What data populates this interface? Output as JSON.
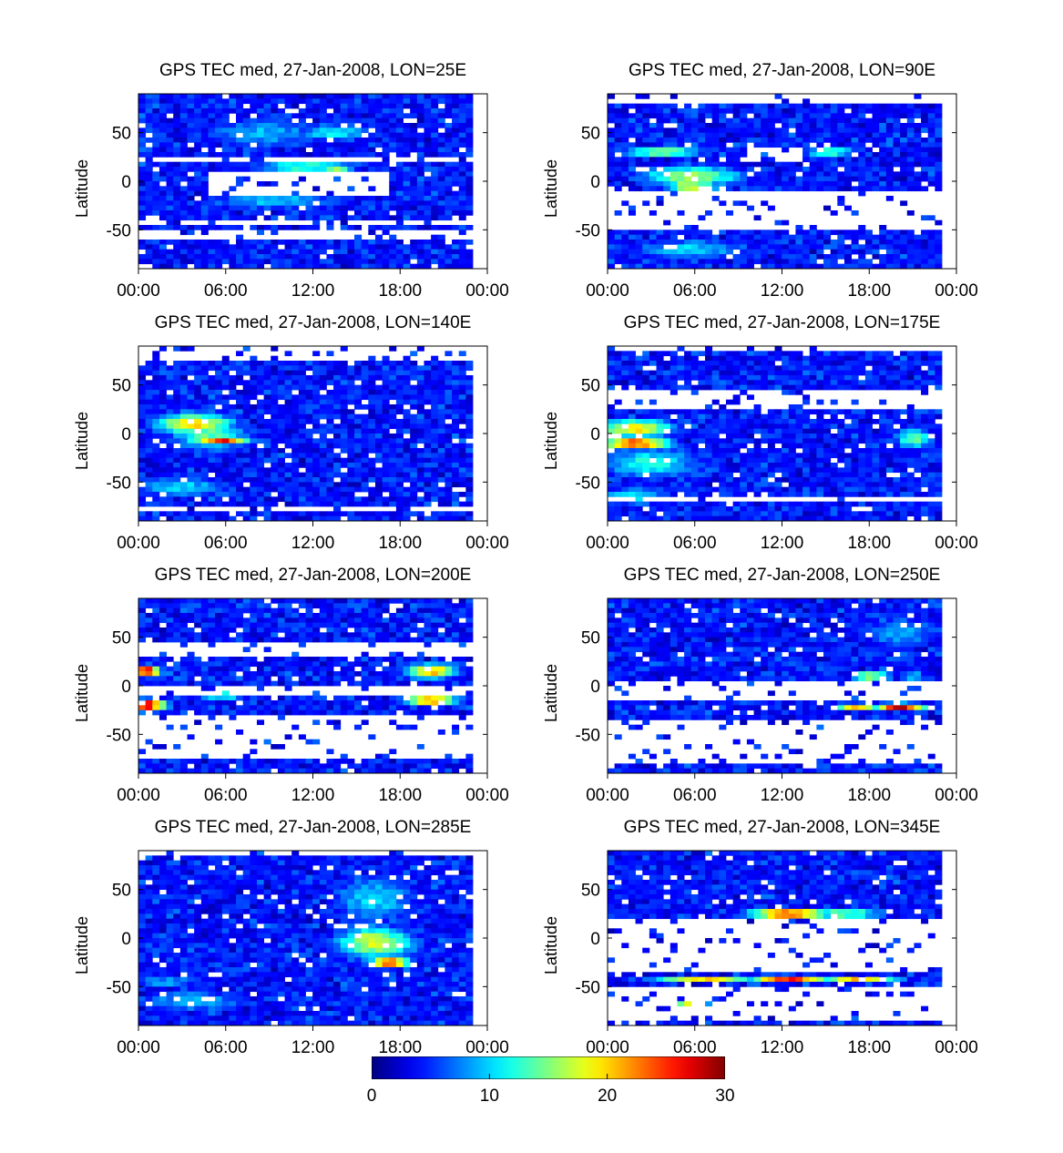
{
  "chart_data": [
    {
      "type": "heatmap",
      "title": "GPS TEC med, 27-Jan-2008, LON=25E",
      "ylabel": "Latitude",
      "xticks": [
        "00:00",
        "06:00",
        "12:00",
        "18:00",
        "00:00"
      ],
      "yticks": [
        "50",
        "0",
        "-50"
      ],
      "xlim": [
        0,
        24
      ],
      "ylim": [
        -90,
        90
      ],
      "blobs": [
        {
          "t": 9,
          "lat": 50,
          "st": 5,
          "sl": 18,
          "v": 9
        },
        {
          "t": 12,
          "lat": 15,
          "st": 4,
          "sl": 10,
          "v": 13
        },
        {
          "t": 14,
          "lat": 10,
          "st": 1.5,
          "sl": 8,
          "v": 17
        },
        {
          "t": 10,
          "lat": -20,
          "st": 5,
          "sl": 10,
          "v": 10
        },
        {
          "t": 14,
          "lat": 50,
          "st": 3,
          "sl": 10,
          "v": 11
        }
      ],
      "gaps": [
        [
          0,
          24,
          18,
          26
        ],
        [
          5,
          18,
          -14,
          10
        ],
        [
          0,
          24,
          -47,
          -40
        ],
        [
          0,
          24,
          -62,
          -52
        ]
      ]
    },
    {
      "type": "heatmap",
      "title": "GPS TEC med, 27-Jan-2008, LON=90E",
      "ylabel": "Latitude",
      "xticks": [
        "00:00",
        "06:00",
        "12:00",
        "18:00",
        "00:00"
      ],
      "yticks": [
        "50",
        "0",
        "-50"
      ],
      "xlim": [
        0,
        24
      ],
      "ylim": [
        -90,
        90
      ],
      "blobs": [
        {
          "t": 6,
          "lat": 5,
          "st": 4,
          "sl": 12,
          "v": 16
        },
        {
          "t": 6,
          "lat": -5,
          "st": 2,
          "sl": 6,
          "v": 20
        },
        {
          "t": 4,
          "lat": 30,
          "st": 3,
          "sl": 3,
          "v": 28
        },
        {
          "t": 16,
          "lat": 30,
          "st": 2,
          "sl": 3,
          "v": 24
        },
        {
          "t": 6,
          "lat": -70,
          "st": 5,
          "sl": 12,
          "v": 10
        }
      ],
      "gaps": [
        [
          0,
          24,
          -52,
          -12
        ],
        [
          0,
          24,
          80,
          92
        ],
        [
          10,
          14,
          20,
          36
        ]
      ]
    },
    {
      "type": "heatmap",
      "title": "GPS TEC med, 27-Jan-2008, LON=140E",
      "ylabel": "Latitude",
      "xticks": [
        "00:00",
        "06:00",
        "12:00",
        "18:00",
        "00:00"
      ],
      "yticks": [
        "50",
        "0",
        "-50"
      ],
      "xlim": [
        0,
        24
      ],
      "ylim": [
        -90,
        90
      ],
      "blobs": [
        {
          "t": 4,
          "lat": 10,
          "st": 3,
          "sl": 12,
          "v": 20
        },
        {
          "t": 5,
          "lat": 0,
          "st": 3,
          "sl": 20,
          "v": 14
        },
        {
          "t": 6,
          "lat": -8,
          "st": 2,
          "sl": 4,
          "v": 27
        },
        {
          "t": 3,
          "lat": -55,
          "st": 4,
          "sl": 12,
          "v": 10
        }
      ],
      "gaps": [
        [
          0,
          24,
          75,
          92
        ],
        [
          0,
          24,
          -80,
          -74
        ]
      ]
    },
    {
      "type": "heatmap",
      "title": "GPS TEC med, 27-Jan-2008, LON=175E",
      "ylabel": "Latitude",
      "xticks": [
        "00:00",
        "06:00",
        "12:00",
        "18:00",
        "00:00"
      ],
      "yticks": [
        "50",
        "0",
        "-50"
      ],
      "xlim": [
        0,
        24
      ],
      "ylim": [
        -90,
        90
      ],
      "blobs": [
        {
          "t": 2,
          "lat": -10,
          "st": 2.5,
          "sl": 6,
          "v": 27
        },
        {
          "t": 2,
          "lat": 5,
          "st": 3,
          "sl": 10,
          "v": 20
        },
        {
          "t": 3,
          "lat": -30,
          "st": 4,
          "sl": 18,
          "v": 12
        },
        {
          "t": 22,
          "lat": -5,
          "st": 1.5,
          "sl": 12,
          "v": 14
        },
        {
          "t": 2,
          "lat": -65,
          "st": 3,
          "sl": 10,
          "v": 11
        }
      ],
      "gaps": [
        [
          0,
          24,
          25,
          45
        ],
        [
          0,
          24,
          -72,
          -65
        ],
        [
          0,
          24,
          85,
          92
        ]
      ]
    },
    {
      "type": "heatmap",
      "title": "GPS TEC med, 27-Jan-2008, LON=200E",
      "ylabel": "Latitude",
      "xticks": [
        "00:00",
        "06:00",
        "12:00",
        "18:00",
        "00:00"
      ],
      "yticks": [
        "50",
        "0",
        "-50"
      ],
      "xlim": [
        0,
        24
      ],
      "ylim": [
        -90,
        90
      ],
      "blobs": [
        {
          "t": 0.6,
          "lat": 15,
          "st": 1,
          "sl": 6,
          "v": 30
        },
        {
          "t": 0.6,
          "lat": -20,
          "st": 1.5,
          "sl": 6,
          "v": 30
        },
        {
          "t": 21,
          "lat": 15,
          "st": 2,
          "sl": 8,
          "v": 22
        },
        {
          "t": 21,
          "lat": -15,
          "st": 2,
          "sl": 6,
          "v": 24
        },
        {
          "t": 6,
          "lat": -10,
          "st": 2,
          "sl": 4,
          "v": 16
        },
        {
          "t": 12,
          "lat": 60,
          "st": 8,
          "sl": 15,
          "v": 4
        }
      ],
      "gaps": [
        [
          0,
          24,
          30,
          45
        ],
        [
          0,
          24,
          -12,
          0
        ],
        [
          0,
          24,
          -75,
          -28
        ]
      ]
    },
    {
      "type": "heatmap",
      "title": "GPS TEC med, 27-Jan-2008, LON=250E",
      "ylabel": "Latitude",
      "xticks": [
        "00:00",
        "06:00",
        "12:00",
        "18:00",
        "00:00"
      ],
      "yticks": [
        "50",
        "0",
        "-50"
      ],
      "xlim": [
        0,
        24
      ],
      "ylim": [
        -90,
        90
      ],
      "blobs": [
        {
          "t": 19,
          "lat": 10,
          "st": 1.5,
          "sl": 3,
          "v": 30
        },
        {
          "t": 21,
          "lat": -22,
          "st": 2,
          "sl": 4,
          "v": 28
        },
        {
          "t": 18,
          "lat": -22,
          "st": 2,
          "sl": 4,
          "v": 20
        },
        {
          "t": 21,
          "lat": 55,
          "st": 3,
          "sl": 20,
          "v": 9
        },
        {
          "t": 22,
          "lat": 10,
          "st": 1,
          "sl": 3,
          "v": 18
        }
      ],
      "gaps": [
        [
          0,
          24,
          -14,
          6
        ],
        [
          0,
          24,
          -80,
          -36
        ],
        [
          0,
          24,
          88,
          92
        ]
      ]
    },
    {
      "type": "heatmap",
      "title": "GPS TEC med, 27-Jan-2008, LON=285E",
      "ylabel": "Latitude",
      "xticks": [
        "00:00",
        "06:00",
        "12:00",
        "18:00",
        "00:00"
      ],
      "yticks": [
        "50",
        "0",
        "-50"
      ],
      "xlim": [
        0,
        24
      ],
      "ylim": [
        -90,
        90
      ],
      "blobs": [
        {
          "t": 17,
          "lat": -5,
          "st": 3,
          "sl": 18,
          "v": 18
        },
        {
          "t": 18,
          "lat": -25,
          "st": 1.5,
          "sl": 5,
          "v": 29
        },
        {
          "t": 16.5,
          "lat": 0,
          "st": 1.5,
          "sl": 4,
          "v": 25
        },
        {
          "t": 17,
          "lat": 40,
          "st": 3.5,
          "sl": 30,
          "v": 10
        },
        {
          "t": 4,
          "lat": -65,
          "st": 4,
          "sl": 12,
          "v": 10
        },
        {
          "t": 2,
          "lat": -45,
          "st": 3,
          "sl": 6,
          "v": 9
        }
      ],
      "gaps": [
        [
          0,
          24,
          87,
          92
        ]
      ]
    },
    {
      "type": "heatmap",
      "title": "GPS TEC med, 27-Jan-2008, LON=345E",
      "ylabel": "Latitude",
      "xticks": [
        "00:00",
        "06:00",
        "12:00",
        "18:00",
        "00:00"
      ],
      "yticks": [
        "50",
        "0",
        "-50"
      ],
      "xlim": [
        0,
        24
      ],
      "ylim": [
        -90,
        90
      ],
      "blobs": [
        {
          "t": 13,
          "lat": 25,
          "st": 3,
          "sl": 5,
          "v": 28
        },
        {
          "t": 17,
          "lat": 25,
          "st": 3,
          "sl": 5,
          "v": 17
        },
        {
          "t": 13,
          "lat": -42,
          "st": 3,
          "sl": 3,
          "v": 26
        },
        {
          "t": 7,
          "lat": -42,
          "st": 4,
          "sl": 3,
          "v": 20
        },
        {
          "t": 18,
          "lat": -42,
          "st": 3,
          "sl": 3,
          "v": 22
        },
        {
          "t": 6,
          "lat": -70,
          "st": 1.5,
          "sl": 5,
          "v": 22
        }
      ],
      "gaps": [
        [
          0,
          24,
          -36,
          18
        ],
        [
          0,
          24,
          -85,
          -48
        ]
      ]
    }
  ],
  "colorbar": {
    "ticks": [
      "0",
      "10",
      "20",
      "30"
    ],
    "range": [
      0,
      30
    ]
  },
  "colormap": "jet"
}
